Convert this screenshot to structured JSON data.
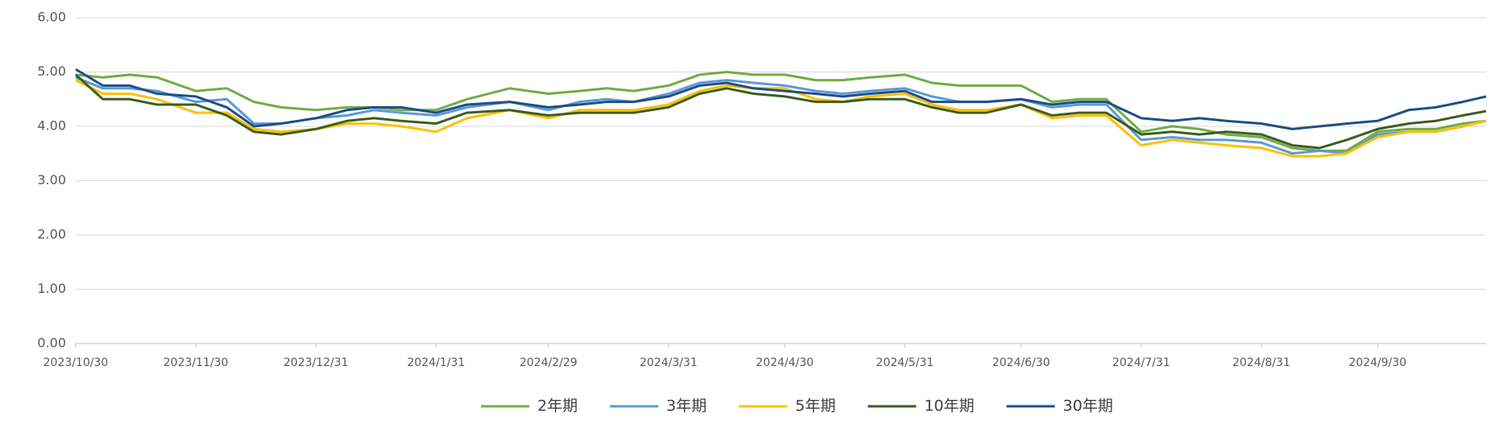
{
  "chart_data": {
    "type": "line",
    "x": [
      "2023/10/30",
      "2023/11/6",
      "2023/11/13",
      "2023/11/20",
      "2023/11/30",
      "2023/12/8",
      "2023/12/15",
      "2023/12/22",
      "2023/12/31",
      "2024/1/8",
      "2024/1/15",
      "2024/1/22",
      "2024/1/31",
      "2024/2/8",
      "2024/2/19",
      "2024/2/29",
      "2024/3/8",
      "2024/3/15",
      "2024/3/22",
      "2024/3/31",
      "2024/4/8",
      "2024/4/15",
      "2024/4/22",
      "2024/4/30",
      "2024/5/8",
      "2024/5/15",
      "2024/5/22",
      "2024/5/31",
      "2024/6/7",
      "2024/6/14",
      "2024/6/21",
      "2024/6/30",
      "2024/7/8",
      "2024/7/15",
      "2024/7/22",
      "2024/7/31",
      "2024/8/8",
      "2024/8/15",
      "2024/8/22",
      "2024/8/31",
      "2024/9/8",
      "2024/9/15",
      "2024/9/22",
      "2024/9/30",
      "2024/10/8",
      "2024/10/15",
      "2024/10/22",
      "2024/10/28"
    ],
    "series": [
      {
        "name": "2年期",
        "color": "#70ad47",
        "values": [
          4.95,
          4.9,
          4.95,
          4.9,
          4.65,
          4.7,
          4.45,
          4.35,
          4.3,
          4.35,
          4.35,
          4.3,
          4.3,
          4.5,
          4.7,
          4.6,
          4.65,
          4.7,
          4.65,
          4.75,
          4.95,
          5.0,
          4.95,
          4.95,
          4.85,
          4.85,
          4.9,
          4.95,
          4.8,
          4.75,
          4.75,
          4.75,
          4.45,
          4.5,
          4.5,
          3.9,
          4.0,
          3.95,
          3.85,
          3.8,
          3.6,
          3.55,
          3.55,
          3.9,
          3.95,
          3.95,
          4.05,
          4.1
        ]
      },
      {
        "name": "3年期",
        "color": "#5b9bd5",
        "values": [
          4.9,
          4.7,
          4.7,
          4.65,
          4.45,
          4.5,
          4.05,
          4.05,
          4.15,
          4.2,
          4.3,
          4.25,
          4.2,
          4.35,
          4.45,
          4.3,
          4.45,
          4.5,
          4.45,
          4.6,
          4.8,
          4.85,
          4.8,
          4.75,
          4.65,
          4.6,
          4.65,
          4.7,
          4.55,
          4.45,
          4.45,
          4.5,
          4.35,
          4.4,
          4.4,
          3.75,
          3.8,
          3.75,
          3.75,
          3.7,
          3.5,
          3.55,
          3.5,
          3.85,
          3.9,
          3.9,
          4.0,
          4.1
        ]
      },
      {
        "name": "5年期",
        "color": "#ffc000",
        "values": [
          4.85,
          4.6,
          4.6,
          4.5,
          4.25,
          4.25,
          3.95,
          3.9,
          3.95,
          4.05,
          4.05,
          4.0,
          3.9,
          4.15,
          4.3,
          4.15,
          4.3,
          4.3,
          4.3,
          4.4,
          4.65,
          4.75,
          4.7,
          4.7,
          4.5,
          4.45,
          4.55,
          4.6,
          4.4,
          4.3,
          4.3,
          4.4,
          4.15,
          4.2,
          4.2,
          3.65,
          3.75,
          3.7,
          3.65,
          3.6,
          3.45,
          3.45,
          3.5,
          3.8,
          3.9,
          3.9,
          4.0,
          4.1
        ]
      },
      {
        "name": "10年期",
        "color": "#3b5e22",
        "values": [
          4.95,
          4.5,
          4.5,
          4.4,
          4.4,
          4.2,
          3.9,
          3.85,
          3.95,
          4.1,
          4.15,
          4.1,
          4.05,
          4.25,
          4.3,
          4.2,
          4.25,
          4.25,
          4.25,
          4.35,
          4.6,
          4.7,
          4.6,
          4.55,
          4.45,
          4.45,
          4.5,
          4.5,
          4.35,
          4.25,
          4.25,
          4.4,
          4.2,
          4.25,
          4.25,
          3.85,
          3.9,
          3.85,
          3.9,
          3.85,
          3.65,
          3.6,
          3.75,
          3.95,
          4.05,
          4.1,
          4.2,
          4.28
        ]
      },
      {
        "name": "30年期",
        "color": "#1f4e89",
        "values": [
          5.05,
          4.75,
          4.75,
          4.6,
          4.55,
          4.35,
          4.0,
          4.05,
          4.15,
          4.3,
          4.35,
          4.35,
          4.25,
          4.4,
          4.45,
          4.35,
          4.4,
          4.45,
          4.45,
          4.55,
          4.75,
          4.8,
          4.7,
          4.65,
          4.6,
          4.55,
          4.6,
          4.65,
          4.45,
          4.45,
          4.45,
          4.5,
          4.4,
          4.45,
          4.45,
          4.15,
          4.1,
          4.15,
          4.1,
          4.05,
          3.95,
          4.0,
          4.05,
          4.1,
          4.3,
          4.35,
          4.45,
          4.55
        ]
      }
    ],
    "xlim": [
      "2023/10/30",
      "2024/10/28"
    ],
    "xticks": [
      "2023/10/30",
      "2023/11/30",
      "2023/12/31",
      "2024/1/31",
      "2024/2/29",
      "2024/3/31",
      "2024/4/30",
      "2024/5/31",
      "2024/6/30",
      "2024/7/31",
      "2024/8/31",
      "2024/9/30"
    ],
    "ylim": [
      0,
      6
    ],
    "yticks": [
      {
        "value": 0,
        "label": "0.00"
      },
      {
        "value": 1,
        "label": "1.00"
      },
      {
        "value": 2,
        "label": "2.00"
      },
      {
        "value": 3,
        "label": "3.00"
      },
      {
        "value": 4,
        "label": "4.00"
      },
      {
        "value": 5,
        "label": "5.00"
      },
      {
        "value": 6,
        "label": "6.00"
      }
    ],
    "grid": true,
    "legend": "bottom"
  }
}
